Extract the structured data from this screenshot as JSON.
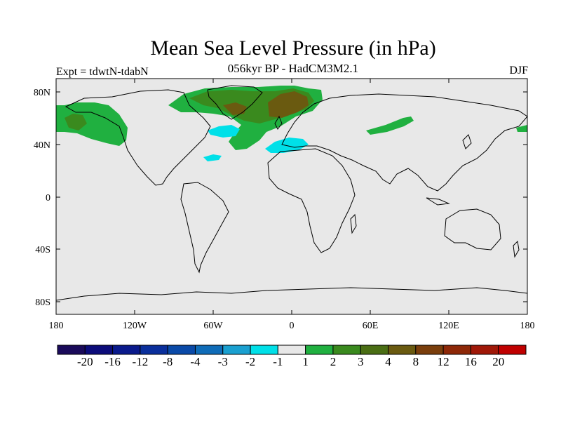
{
  "title": "Mean Sea Level Pressure (in hPa)",
  "subtitle": "056kyr BP - HadCM3M2.1",
  "left_label": "Expt = tdwtN-tdabN",
  "right_label": "DJF",
  "lat_ticks": [
    "80N",
    "40N",
    "0",
    "40S",
    "80S"
  ],
  "lon_ticks": [
    "180",
    "120W",
    "60W",
    "0",
    "60E",
    "120E",
    "180"
  ],
  "colorbar": {
    "labels": [
      "-20",
      "-16",
      "-12",
      "-8",
      "-4",
      "-3",
      "-2",
      "-1",
      "1",
      "2",
      "3",
      "4",
      "8",
      "12",
      "16",
      "20"
    ],
    "colors": [
      "#1a0a5a",
      "#0c0c7a",
      "#0a1a8c",
      "#0a2f9c",
      "#0a4aa8",
      "#0f6cb8",
      "#1aa0d0",
      "#00e0e8",
      "#e8e8e8",
      "#20b040",
      "#3a8a1e",
      "#4a6e14",
      "#6a5a10",
      "#7a3e0c",
      "#8e2808",
      "#a01808",
      "#c00000"
    ]
  },
  "colors": {
    "land_ocean_background": "#e8e8e8",
    "positive_low": "#20b040",
    "positive_mid": "#3a8a1e",
    "positive_high": "#6a5a10",
    "negative_low": "#00e0e8"
  }
}
